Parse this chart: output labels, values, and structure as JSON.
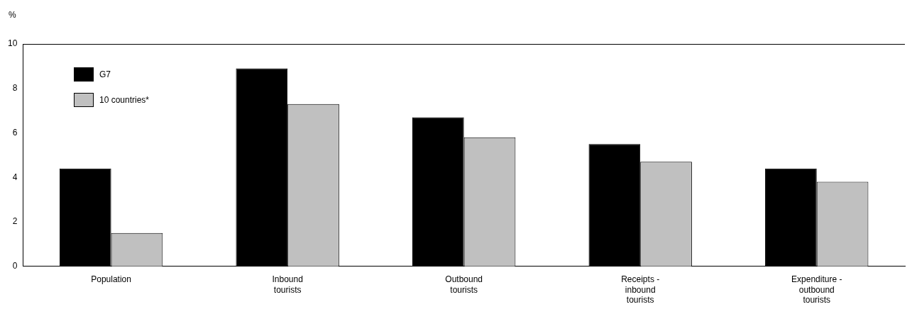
{
  "chart_data": {
    "type": "bar",
    "ylabel": "%",
    "categories": [
      "Population",
      "Inbound tourists",
      "Outbound tourists",
      "Receipts - inbound tourists",
      "Expenditure - outbound tourists"
    ],
    "series": [
      {
        "name": "G7",
        "color": "#000000",
        "values": [
          4.4,
          8.9,
          6.7,
          5.5,
          4.4
        ]
      },
      {
        "name": "10 countries*",
        "color": "#c0c0c0",
        "values": [
          1.5,
          7.3,
          5.8,
          4.7,
          3.8
        ]
      }
    ],
    "ylim": [
      0,
      10
    ],
    "yticks": [
      0,
      2,
      4,
      6,
      8,
      10
    ],
    "grid": false,
    "legend": "top left"
  }
}
